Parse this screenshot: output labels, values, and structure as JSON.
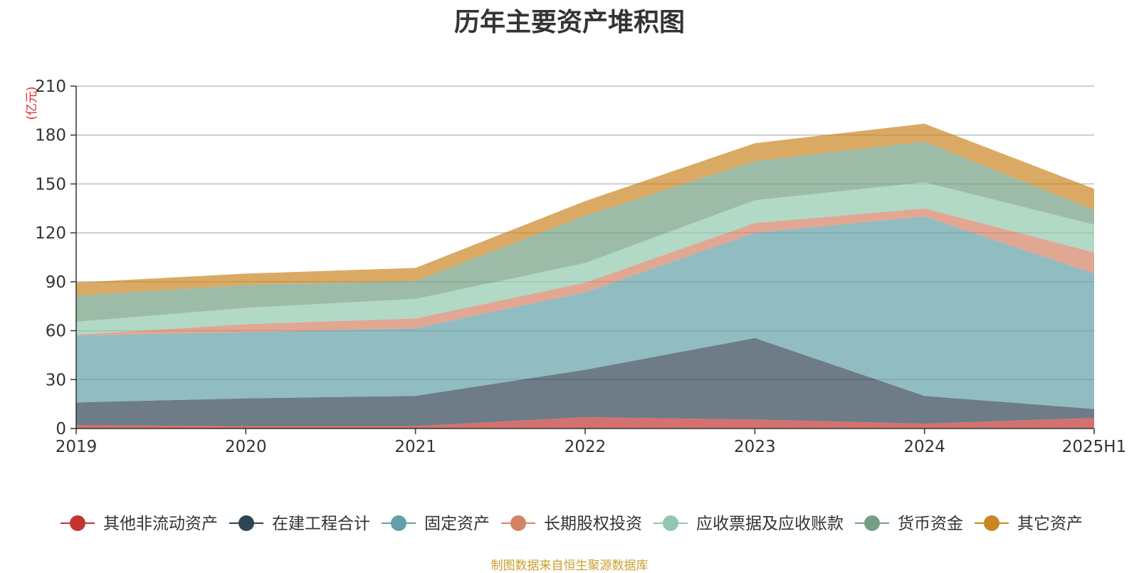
{
  "chart_data": {
    "type": "area",
    "stacked": true,
    "title": "历年主要资产堆积图",
    "ylabel": "(亿元)",
    "footer": "制图数据来自恒生聚源数据库",
    "categories": [
      "2019",
      "2020",
      "2021",
      "2022",
      "2023",
      "2024",
      "2025H1"
    ],
    "ylim": [
      0,
      210
    ],
    "yticks": [
      "0",
      "30",
      "60",
      "90",
      "120",
      "150",
      "180",
      "210"
    ],
    "grid": true,
    "legend_position": "bottom",
    "series": [
      {
        "name": "其他非流动资产",
        "color": "#c23531",
        "values": [
          2,
          1.5,
          1.5,
          7,
          5.5,
          3,
          6.5
        ]
      },
      {
        "name": "在建工程合计",
        "color": "#2f4554",
        "values": [
          14,
          17,
          18.5,
          29,
          50,
          17,
          5.5
        ]
      },
      {
        "name": "固定资产",
        "color": "#61a0a8",
        "values": [
          41,
          40.5,
          41.5,
          47.5,
          64.5,
          110,
          83
        ]
      },
      {
        "name": "长期股权投资",
        "color": "#d48265",
        "values": [
          0.5,
          5,
          6,
          6,
          6,
          5,
          13
        ]
      },
      {
        "name": "应收票据及应收账款",
        "color": "#91c7ae",
        "values": [
          8,
          10,
          12,
          12,
          14,
          16,
          17
        ]
      },
      {
        "name": "货币资金",
        "color": "#749f83",
        "values": [
          16,
          14,
          11,
          29,
          24,
          25,
          9
        ]
      },
      {
        "name": "其它资产",
        "color": "#ca8622",
        "values": [
          8,
          7,
          8,
          9,
          11,
          11,
          13
        ]
      }
    ]
  }
}
